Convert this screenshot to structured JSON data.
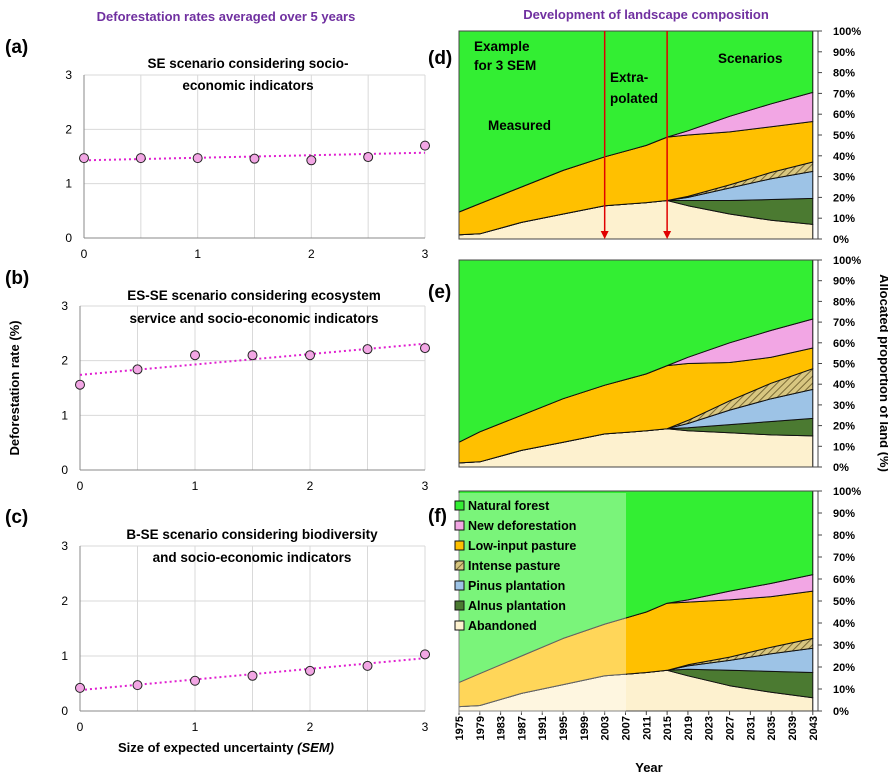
{
  "headers": {
    "left": "Deforestation rates averaged over 5 years",
    "right": "Development of landscape composition"
  },
  "chart_data": [
    {
      "type": "scatter",
      "panel": "(a)",
      "title_lines": [
        "SE scenario considering socio-",
        "economic indicators"
      ],
      "x": [
        0,
        0.5,
        1,
        1.5,
        2,
        2.5,
        3
      ],
      "y": [
        1.47,
        1.47,
        1.47,
        1.46,
        1.43,
        1.49,
        1.7
      ],
      "trend": [
        1.43,
        1.57
      ],
      "xlim": [
        0,
        3
      ],
      "ylim": [
        0,
        3
      ],
      "xticks": [
        "0",
        "1",
        "2",
        "3"
      ],
      "yticks": [
        "0",
        "1",
        "2",
        "3"
      ],
      "grid": true
    },
    {
      "type": "scatter",
      "panel": "(b)",
      "title_lines": [
        "ES-SE scenario considering ecosystem",
        "service and socio-economic indicators"
      ],
      "x": [
        0,
        0.5,
        1,
        1.5,
        2,
        2.5,
        3
      ],
      "y": [
        1.56,
        1.84,
        2.1,
        2.1,
        2.1,
        2.21,
        2.23
      ],
      "trend": [
        1.74,
        2.31
      ],
      "xlim": [
        0,
        3
      ],
      "ylim": [
        0,
        3
      ],
      "xticks": [
        "0",
        "1",
        "2",
        "3"
      ],
      "yticks": [
        "0",
        "1",
        "2",
        "3"
      ],
      "grid": true
    },
    {
      "type": "scatter",
      "panel": "(c)",
      "title_lines": [
        "B-SE scenario considering biodiversity",
        "and socio-economic indicators"
      ],
      "x": [
        0,
        0.5,
        1,
        1.5,
        2,
        2.5,
        3
      ],
      "y": [
        0.42,
        0.47,
        0.55,
        0.64,
        0.73,
        0.82,
        1.03
      ],
      "trend": [
        0.38,
        0.96
      ],
      "xlim": [
        0,
        3
      ],
      "ylim": [
        0,
        3
      ],
      "xticks": [
        "0",
        "1",
        "2",
        "3"
      ],
      "yticks": [
        "0",
        "1",
        "2",
        "3"
      ],
      "grid": true
    },
    {
      "type": "area",
      "panel": "(d)",
      "x": [
        1975,
        1979,
        1987,
        1995,
        2003,
        2011,
        2015,
        2019,
        2027,
        2035,
        2043
      ],
      "series": [
        {
          "name": "Abandoned",
          "color": "#fdf1cf",
          "values": [
            2,
            2.5,
            8,
            12,
            16,
            17.5,
            18.5,
            16,
            12,
            9,
            7
          ]
        },
        {
          "name": "Alnus plantation",
          "color": "#4b7a31",
          "values": [
            0,
            0,
            0,
            0,
            0,
            0,
            0,
            2.5,
            6.5,
            10,
            12.5
          ]
        },
        {
          "name": "Pinus plantation",
          "color": "#9dc3e6",
          "values": [
            0,
            0,
            0,
            0,
            0,
            0,
            0,
            1.5,
            6,
            10,
            13
          ]
        },
        {
          "name": "Intense pasture",
          "color": "#b8a660",
          "pattern": "hatch",
          "values": [
            0,
            0,
            0,
            0,
            0,
            0,
            0,
            0.5,
            1.5,
            3,
            4.5
          ]
        },
        {
          "name": "Low-input pasture",
          "color": "#ffc000",
          "values": [
            11,
            14.5,
            17,
            21,
            23.5,
            27.5,
            30.5,
            29.5,
            25.5,
            22,
            19.5
          ]
        },
        {
          "name": "New deforestation",
          "color": "#f2a6e4",
          "values": [
            0,
            0,
            0,
            0,
            0,
            0,
            0,
            2,
            7.5,
            11,
            14
          ]
        },
        {
          "name": "Natural forest",
          "color": "#33ee33",
          "values": [
            87,
            83,
            75,
            67,
            60.5,
            55,
            51,
            48,
            41,
            35,
            29.5
          ]
        }
      ],
      "annotations": {
        "example": [
          "Example",
          "for 3 SEM"
        ],
        "measured": "Measured",
        "extrapolated": [
          "Extra-",
          "polated"
        ],
        "scenarios": "Scenarios"
      },
      "markers": [
        2003,
        2015
      ]
    },
    {
      "type": "area",
      "panel": "(e)",
      "x": [
        1975,
        1979,
        1987,
        1995,
        2003,
        2011,
        2015,
        2019,
        2027,
        2035,
        2043
      ],
      "series": [
        {
          "name": "Abandoned",
          "color": "#fdf1cf",
          "values": [
            2,
            2.5,
            8,
            12,
            16,
            17.5,
            18.5,
            17.5,
            16.5,
            15.5,
            15
          ]
        },
        {
          "name": "Alnus plantation",
          "color": "#4b7a31",
          "values": [
            0,
            0,
            0,
            0,
            0,
            0,
            0,
            1.5,
            4,
            6.5,
            8.5
          ]
        },
        {
          "name": "Pinus plantation",
          "color": "#9dc3e6",
          "values": [
            0,
            0,
            0,
            0,
            0,
            0,
            0,
            2,
            7,
            11,
            14
          ]
        },
        {
          "name": "Intense pasture",
          "color": "#b8a660",
          "pattern": "hatch",
          "values": [
            0,
            0,
            0,
            0,
            0,
            0,
            0,
            1.5,
            4.5,
            7.5,
            10
          ]
        },
        {
          "name": "Low-input pasture",
          "color": "#ffc000",
          "values": [
            10,
            14.5,
            17,
            21,
            23.5,
            27.5,
            30.5,
            27.5,
            18.5,
            12.5,
            10
          ]
        },
        {
          "name": "New deforestation",
          "color": "#f2a6e4",
          "values": [
            0,
            0,
            0,
            0,
            0,
            0,
            0,
            3,
            9.5,
            13,
            14
          ]
        },
        {
          "name": "Natural forest",
          "color": "#33ee33",
          "values": [
            88,
            83,
            75,
            67,
            60.5,
            55,
            51,
            47,
            40,
            34,
            28.5
          ]
        }
      ]
    },
    {
      "type": "area",
      "panel": "(f)",
      "x": [
        1975,
        1979,
        1987,
        1995,
        2003,
        2011,
        2015,
        2019,
        2027,
        2035,
        2043
      ],
      "series": [
        {
          "name": "Abandoned",
          "color": "#fdf1cf",
          "values": [
            2,
            2.5,
            8,
            12,
            16,
            17.5,
            18.5,
            16,
            11.5,
            8.5,
            6
          ]
        },
        {
          "name": "Alnus plantation",
          "color": "#4b7a31",
          "values": [
            0,
            0,
            0,
            0,
            0,
            0,
            0,
            3,
            7,
            9.5,
            11.5
          ]
        },
        {
          "name": "Pinus plantation",
          "color": "#9dc3e6",
          "values": [
            0,
            0,
            0,
            0,
            0,
            0,
            0,
            1.5,
            4.5,
            8,
            11
          ]
        },
        {
          "name": "Intense pasture",
          "color": "#b8a660",
          "pattern": "hatch",
          "values": [
            0,
            0,
            0,
            0,
            0,
            0,
            0,
            0.5,
            1.5,
            3,
            4.5
          ]
        },
        {
          "name": "Low-input pasture",
          "color": "#ffc000",
          "values": [
            11,
            14.5,
            17,
            21,
            23.5,
            27.5,
            30.5,
            28.5,
            26,
            23,
            21.5
          ]
        },
        {
          "name": "New deforestation",
          "color": "#f2a6e4",
          "values": [
            0,
            0,
            0,
            0,
            0,
            0,
            0,
            1,
            4,
            6,
            7.5
          ]
        },
        {
          "name": "Natural forest",
          "color": "#33ee33",
          "values": [
            87,
            83,
            75,
            67,
            60.5,
            55,
            51,
            49.5,
            45.5,
            42,
            38
          ]
        }
      ]
    }
  ],
  "legend": [
    "Natural forest",
    "New deforestation",
    "Low-input pasture",
    "Intense pasture",
    "Pinus plantation",
    "Alnus plantation",
    "Abandoned"
  ],
  "axes": {
    "left_ylabel": "Deforestation rate (%)",
    "left_xlabel_prefix": "Size of expected uncertainty ",
    "left_xlabel_italic": "(SEM)",
    "right_ylabel": "Allocated proportion of land (%)",
    "right_xlabel": "Year",
    "pct_ticks": [
      "0%",
      "10%",
      "20%",
      "30%",
      "40%",
      "50%",
      "60%",
      "70%",
      "80%",
      "90%",
      "100%"
    ],
    "year_ticks": [
      "1975",
      "1979",
      "1983",
      "1987",
      "1991",
      "1995",
      "1999",
      "2003",
      "2007",
      "2011",
      "2015",
      "2019",
      "2023",
      "2027",
      "2031",
      "2035",
      "2039",
      "2043"
    ]
  }
}
